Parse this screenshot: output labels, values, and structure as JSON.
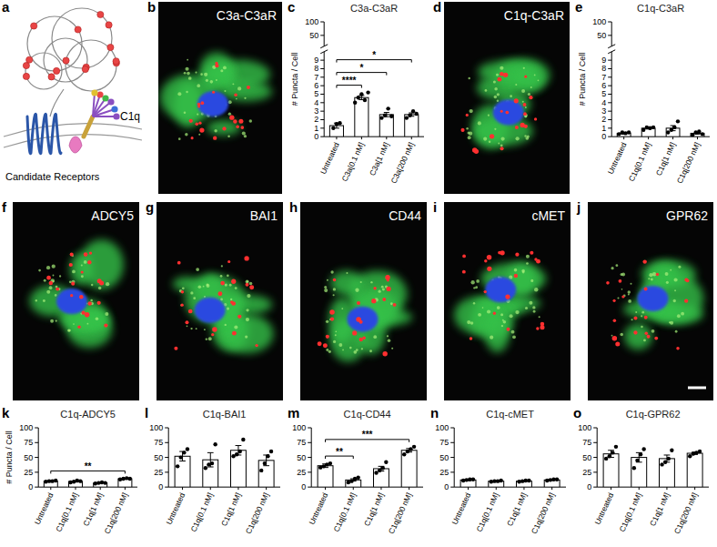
{
  "chart_data": [
    {
      "type": "bar",
      "panel_label": "c",
      "title": "C3a-C3aR",
      "y_label": "# Puncta / Cell",
      "color": "#ffffff",
      "categories": [
        "Untreated",
        "C3a[0.1 nM]",
        "C3a[1 nM]",
        "C3a[200 nM]"
      ],
      "values": [
        1.3,
        4.6,
        2.6,
        2.6
      ],
      "errors": [
        0.3,
        0.25,
        0.25,
        0.2
      ],
      "points": [
        [
          1.0,
          1.5,
          1.6
        ],
        [
          4.0,
          4.6,
          5.0,
          4.3,
          5.2
        ],
        [
          2.2,
          2.5,
          3.3,
          2.4
        ],
        [
          2.2,
          2.5,
          3.0,
          2.7
        ]
      ],
      "significance": [
        {
          "pair": [
            "Untreated",
            "C3a[0.1 nM]"
          ],
          "label": "****"
        },
        {
          "pair": [
            "Untreated",
            "C3a[1 nM]"
          ],
          "label": "*"
        },
        {
          "pair": [
            "Untreated",
            "C3a[200 nM]"
          ],
          "label": "*"
        }
      ],
      "ylim": [
        0,
        100
      ],
      "y_break": 10,
      "yticks": [
        0,
        1,
        2,
        3,
        4,
        5,
        6,
        7,
        8,
        9,
        50,
        100
      ]
    },
    {
      "type": "bar",
      "panel_label": "e",
      "title": "C1q-C3aR",
      "y_label": "# Puncta / Cell",
      "color": "#ffffff",
      "categories": [
        "Untreated",
        "C1q[0.1 nM]",
        "C1q[1 nM]",
        "C1q[200 nM]"
      ],
      "values": [
        0.4,
        1.0,
        1.0,
        0.4
      ],
      "errors": [
        0.1,
        0.1,
        0.3,
        0.1
      ],
      "points": [
        [
          0.3,
          0.5,
          0.4,
          0.5
        ],
        [
          0.8,
          1.1,
          1.0,
          1.1
        ],
        [
          0.5,
          0.8,
          1.1,
          1.8
        ],
        [
          0.2,
          0.5,
          0.6,
          0.3
        ]
      ],
      "significance": [],
      "ylim": [
        0,
        100
      ],
      "y_break": 10,
      "yticks": [
        0,
        1,
        2,
        3,
        4,
        5,
        6,
        7,
        8,
        9,
        50,
        100
      ]
    },
    {
      "type": "bar",
      "panel_label": "k",
      "title": "C1q-ADCY5",
      "y_label": "# Puncta / Cell",
      "color": "#ffffff",
      "categories": [
        "Untreated",
        "C1q[0.1 nM]",
        "C1q[1 nM]",
        "C1q[200 nM]"
      ],
      "values": [
        10,
        9.5,
        7,
        14
      ],
      "errors": [
        0.5,
        1,
        0.5,
        0.5
      ],
      "points": [
        [
          9,
          10,
          10,
          11
        ],
        [
          8,
          9,
          11,
          10
        ],
        [
          6,
          7,
          8,
          7
        ],
        [
          13,
          14,
          15,
          14
        ]
      ],
      "significance": [
        {
          "pair": [
            "Untreated",
            "C1q[200 nM]"
          ],
          "label": "**"
        }
      ],
      "ylim": [
        0,
        100
      ],
      "yticks": [
        0,
        25,
        50,
        75,
        100
      ]
    },
    {
      "type": "bar",
      "panel_label": "l",
      "title": "C1q-BAI1",
      "color": "#ffffff",
      "categories": [
        "Untreated",
        "C1q[0.1 nM]",
        "C1q[1 nM]",
        "C1q[200 nM]"
      ],
      "values": [
        52,
        46,
        62,
        45
      ],
      "errors": [
        8,
        12,
        8,
        9
      ],
      "points": [
        [
          35,
          50,
          58,
          64
        ],
        [
          32,
          38,
          40,
          72
        ],
        [
          52,
          55,
          60,
          80
        ],
        [
          28,
          40,
          52,
          60
        ]
      ],
      "significance": [],
      "ylim": [
        0,
        100
      ],
      "yticks": [
        0,
        25,
        50,
        75,
        100
      ]
    },
    {
      "type": "bar",
      "panel_label": "m",
      "title": "C1q-CD44",
      "color": "#ffffff",
      "categories": [
        "Untreated",
        "C1q[0.1 nM]",
        "C1q[1 nM]",
        "C1q[200 nM]"
      ],
      "values": [
        36,
        12,
        31,
        62
      ],
      "errors": [
        3,
        2,
        4,
        3
      ],
      "points": [
        [
          33,
          35,
          38,
          40
        ],
        [
          8,
          10,
          14,
          16
        ],
        [
          24,
          28,
          32,
          42
        ],
        [
          55,
          60,
          64,
          68
        ]
      ],
      "significance": [
        {
          "pair": [
            "Untreated",
            "C1q[0.1 nM]"
          ],
          "label": "**"
        },
        {
          "pair": [
            "Untreated",
            "C1q[200 nM]"
          ],
          "label": "***"
        }
      ],
      "ylim": [
        0,
        100
      ],
      "yticks": [
        0,
        25,
        50,
        75,
        100
      ]
    },
    {
      "type": "bar",
      "panel_label": "n",
      "title": "C1q-cMET",
      "color": "#ffffff",
      "categories": [
        "Untreated",
        "C1q[0.1 nM]",
        "C1q[1 nM]",
        "C1q[200 nM]"
      ],
      "values": [
        12,
        10,
        10,
        12
      ],
      "errors": [
        1,
        0.5,
        0.5,
        0.5
      ],
      "points": [
        [
          11,
          12,
          13,
          13
        ],
        [
          9,
          10,
          10,
          11
        ],
        [
          9,
          10,
          11,
          11
        ],
        [
          11,
          12,
          13,
          13
        ]
      ],
      "significance": [],
      "ylim": [
        0,
        100
      ],
      "yticks": [
        0,
        25,
        50,
        75,
        100
      ]
    },
    {
      "type": "bar",
      "panel_label": "o",
      "title": "C1q-GPR62",
      "color": "#ffffff",
      "categories": [
        "Untreated",
        "C1q[0.1 nM]",
        "C1q[1 nM]",
        "C1q[200 nM]"
      ],
      "values": [
        56,
        50,
        48,
        57
      ],
      "errors": [
        6,
        8,
        6,
        2
      ],
      "points": [
        [
          48,
          52,
          58,
          68
        ],
        [
          32,
          45,
          55,
          64
        ],
        [
          38,
          42,
          48,
          62
        ],
        [
          52,
          56,
          58,
          60
        ]
      ],
      "significance": [],
      "ylim": [
        0,
        100
      ],
      "yticks": [
        0,
        25,
        50,
        75,
        100
      ]
    }
  ],
  "diagram": {
    "panel_label": "a",
    "ligand": "C1q",
    "caption": "Candidate Receptors"
  },
  "images": [
    {
      "panel_label": "b",
      "label": "C3a-C3aR"
    },
    {
      "panel_label": "d",
      "label": "C1q-C3aR"
    },
    {
      "panel_label": "f",
      "label": "ADCY5"
    },
    {
      "panel_label": "g",
      "label": "BAI1"
    },
    {
      "panel_label": "h",
      "label": "CD44"
    },
    {
      "panel_label": "i",
      "label": "cMET"
    },
    {
      "panel_label": "j",
      "label": "GPR62"
    }
  ]
}
